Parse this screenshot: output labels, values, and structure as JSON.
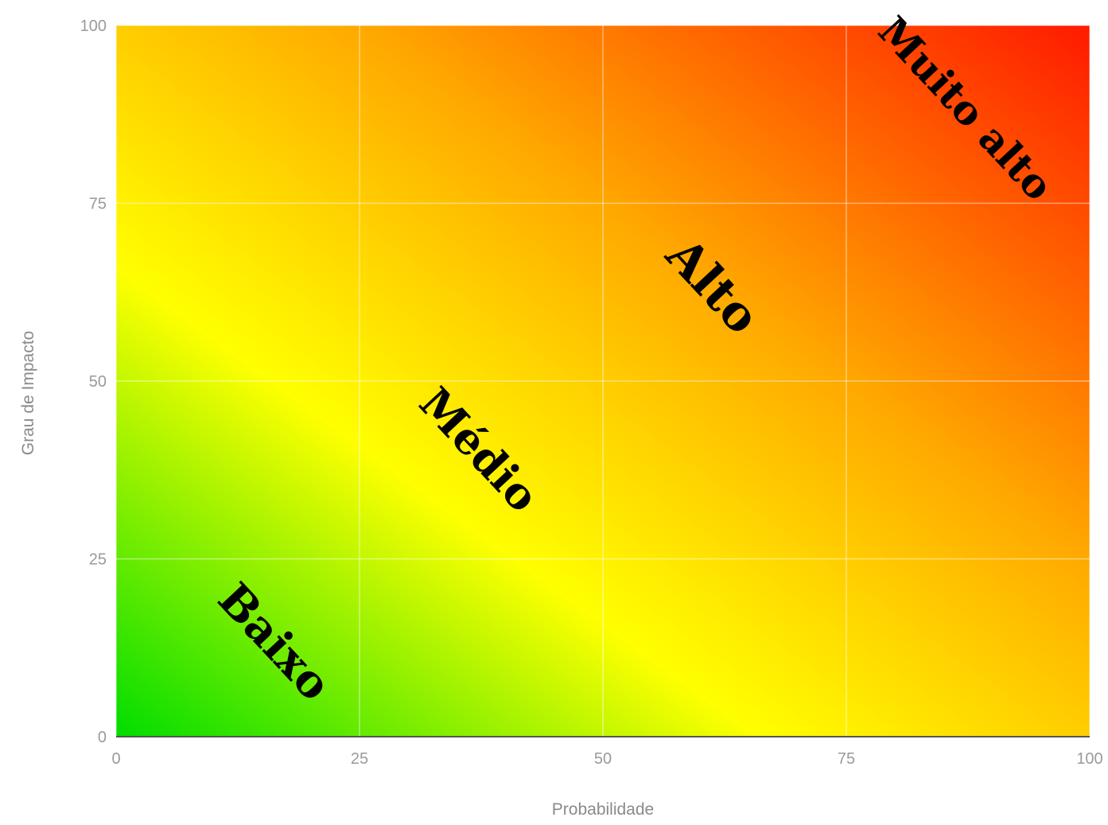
{
  "chart_data": {
    "type": "heatmap",
    "title": "",
    "xlabel": "Probabilidade",
    "ylabel": "Grau de Impacto",
    "xlim": [
      0,
      100
    ],
    "ylim": [
      0,
      100
    ],
    "x_ticks": [
      "0",
      "25",
      "50",
      "75",
      "100"
    ],
    "y_ticks": [
      "0",
      "25",
      "50",
      "75",
      "100"
    ],
    "x_tick_values": [
      0,
      25,
      50,
      75,
      100
    ],
    "y_tick_values": [
      0,
      25,
      50,
      75,
      100
    ],
    "grid": true,
    "gradient": {
      "direction": "bottom-left to top-right",
      "stops": [
        {
          "offset": 0.0,
          "color": "#00dd00"
        },
        {
          "offset": 0.33,
          "color": "#ffff00"
        },
        {
          "offset": 0.62,
          "color": "#ffaa00"
        },
        {
          "offset": 1.0,
          "color": "#ff1a00"
        }
      ]
    },
    "zones": [
      {
        "label": "Baixo",
        "x": 16,
        "y": 13
      },
      {
        "label": "Médio",
        "x": 37,
        "y": 40
      },
      {
        "label": "Alto",
        "x": 61,
        "y": 63
      },
      {
        "label": "Muito alto",
        "x": 87,
        "y": 88
      }
    ]
  }
}
